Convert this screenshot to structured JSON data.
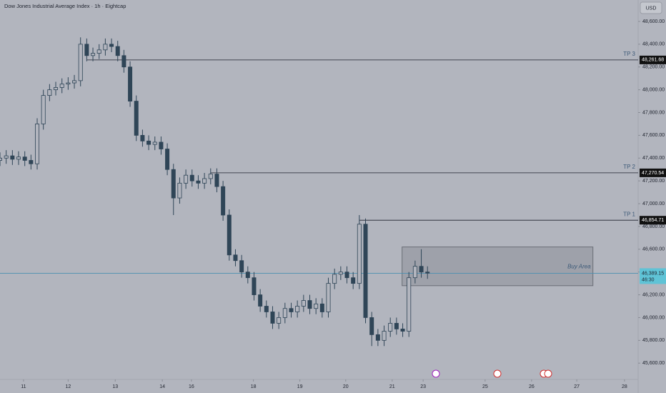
{
  "chart_data": {
    "type": "candlestick",
    "title": "Dow Jones Industrial Average Index · 1h · Eightcap",
    "currency": "USD",
    "color": "#2f4557",
    "x": [
      0,
      1,
      2,
      3,
      4,
      5,
      6,
      7,
      8,
      9,
      10,
      11,
      12,
      13,
      14,
      15,
      16,
      17,
      18,
      19,
      20,
      21,
      22,
      23,
      24,
      25,
      26,
      27,
      28,
      29,
      30,
      31,
      32,
      33,
      34,
      35,
      36,
      37,
      38,
      39,
      40,
      41,
      42,
      43,
      44,
      45,
      46,
      47,
      48,
      49,
      50,
      51,
      52,
      53,
      54,
      55,
      56,
      57,
      58,
      59,
      60,
      61,
      62,
      63,
      64,
      65,
      66,
      67,
      68,
      69
    ],
    "open": [
      47380,
      47400,
      47420,
      47390,
      47410,
      47380,
      47350,
      47700,
      47950,
      48000,
      48020,
      48050,
      48060,
      48080,
      48400,
      48300,
      48320,
      48350,
      48400,
      48380,
      48300,
      48200,
      47900,
      47600,
      47550,
      47520,
      47540,
      47480,
      47300,
      47050,
      47180,
      47250,
      47200,
      47180,
      47220,
      47260,
      47150,
      46900,
      46550,
      46500,
      46400,
      46350,
      46200,
      46100,
      46050,
      45950,
      46000,
      46080,
      46050,
      46100,
      46150,
      46080,
      46120,
      46050,
      46300,
      46380,
      46400,
      46350,
      46300,
      46820,
      46000,
      45850,
      45800,
      45880,
      45950,
      45900,
      45880,
      46350,
      46450,
      46400
    ],
    "high": [
      47450,
      47470,
      47470,
      47460,
      47460,
      47430,
      47750,
      48000,
      48050,
      48070,
      48100,
      48110,
      48130,
      48460,
      48450,
      48370,
      48400,
      48450,
      48450,
      48430,
      48350,
      48250,
      47950,
      47650,
      47600,
      47590,
      47590,
      47530,
      47350,
      47230,
      47300,
      47300,
      47250,
      47270,
      47310,
      47310,
      47200,
      46950,
      46600,
      46550,
      46450,
      46400,
      46250,
      46150,
      46100,
      46050,
      46130,
      46130,
      46150,
      46200,
      46200,
      46170,
      46170,
      46350,
      46430,
      46450,
      46450,
      46400,
      46900,
      46870,
      46050,
      45900,
      45930,
      46000,
      46000,
      45950,
      46400,
      46500,
      46600,
      46450
    ],
    "low": [
      47330,
      47350,
      47340,
      47340,
      47330,
      47300,
      47300,
      47650,
      47900,
      47950,
      47970,
      48000,
      48010,
      48030,
      48250,
      48250,
      48270,
      48300,
      48330,
      48250,
      48150,
      47850,
      47550,
      47500,
      47470,
      47470,
      47430,
      47250,
      46900,
      47000,
      47130,
      47150,
      47130,
      47130,
      47170,
      47100,
      46850,
      46500,
      46450,
      46350,
      46300,
      46150,
      46050,
      46000,
      45900,
      45900,
      45950,
      46000,
      46000,
      46050,
      46030,
      46030,
      46000,
      46000,
      46250,
      46330,
      46300,
      46250,
      46250,
      45950,
      45750,
      45750,
      45750,
      45830,
      45850,
      45830,
      45830,
      46300,
      46350,
      46340
    ],
    "close": [
      47400,
      47420,
      47390,
      47410,
      47380,
      47350,
      47700,
      47950,
      48000,
      48020,
      48050,
      48060,
      48080,
      48400,
      48300,
      48320,
      48350,
      48400,
      48380,
      48300,
      48200,
      47900,
      47600,
      47550,
      47520,
      47540,
      47480,
      47300,
      47050,
      47180,
      47250,
      47200,
      47180,
      47220,
      47260,
      47150,
      46900,
      46550,
      46500,
      46400,
      46350,
      46200,
      46100,
      46050,
      45950,
      46000,
      46080,
      46050,
      46100,
      46150,
      46080,
      46120,
      46050,
      46300,
      46380,
      46400,
      46350,
      46300,
      46820,
      46000,
      45850,
      45800,
      45880,
      45950,
      45900,
      45880,
      46350,
      46450,
      46400,
      46390
    ],
    "xlim": [
      0,
      103
    ],
    "xticks": [
      {
        "value": 3.8,
        "label": "11"
      },
      {
        "value": 11,
        "label": "12"
      },
      {
        "value": 18.6,
        "label": "13"
      },
      {
        "value": 26.2,
        "label": "14"
      },
      {
        "value": 30.9,
        "label": "16"
      },
      {
        "value": 40.9,
        "label": "18"
      },
      {
        "value": 48.4,
        "label": "19"
      },
      {
        "value": 55.8,
        "label": "20"
      },
      {
        "value": 63.3,
        "label": "21"
      },
      {
        "value": 68.3,
        "label": "23"
      },
      {
        "value": 78.3,
        "label": "25"
      },
      {
        "value": 85.8,
        "label": "26"
      },
      {
        "value": 93.1,
        "label": "27"
      },
      {
        "value": 100.8,
        "label": "28"
      }
    ],
    "ylim": [
      45432,
      48788
    ],
    "yticks": [
      {
        "value": 45600,
        "label": "45,600.00"
      },
      {
        "value": 45800,
        "label": "45,800.00"
      },
      {
        "value": 46000,
        "label": "46,000.00"
      },
      {
        "value": 46200,
        "label": "46,200.00"
      },
      {
        "value": 46400,
        "label": "46,400.00"
      },
      {
        "value": 46600,
        "label": "46,600.00"
      },
      {
        "value": 46800,
        "label": "46,800.00"
      },
      {
        "value": 47000,
        "label": "47,000.00"
      },
      {
        "value": 47200,
        "label": "47,200.00"
      },
      {
        "value": 47400,
        "label": "47,400.00"
      },
      {
        "value": 47600,
        "label": "47,600.00"
      },
      {
        "value": 47800,
        "label": "47,800.00"
      },
      {
        "value": 48000,
        "label": "48,000.00"
      },
      {
        "value": 48200,
        "label": "48,200.00"
      },
      {
        "value": 48400,
        "label": "48,400.00"
      },
      {
        "value": 48600,
        "label": "48,600.00"
      }
    ],
    "grid": false,
    "levels": [
      {
        "name": "TP 3",
        "value": 48261.68,
        "label": "48,261.68",
        "from": 14
      },
      {
        "name": "TP 2",
        "value": 47270.54,
        "label": "47,270.54",
        "from": 34
      },
      {
        "name": "TP 1",
        "value": 46854.71,
        "label": "46,854.71",
        "from": 58
      }
    ],
    "zone": {
      "name": "Buy Area",
      "top": 46620,
      "bottom": 46280,
      "from": 64.9,
      "to": 95.7
    },
    "current_price": 46389.15,
    "current_price_label": "46,389.15",
    "countdown": "46:30"
  }
}
